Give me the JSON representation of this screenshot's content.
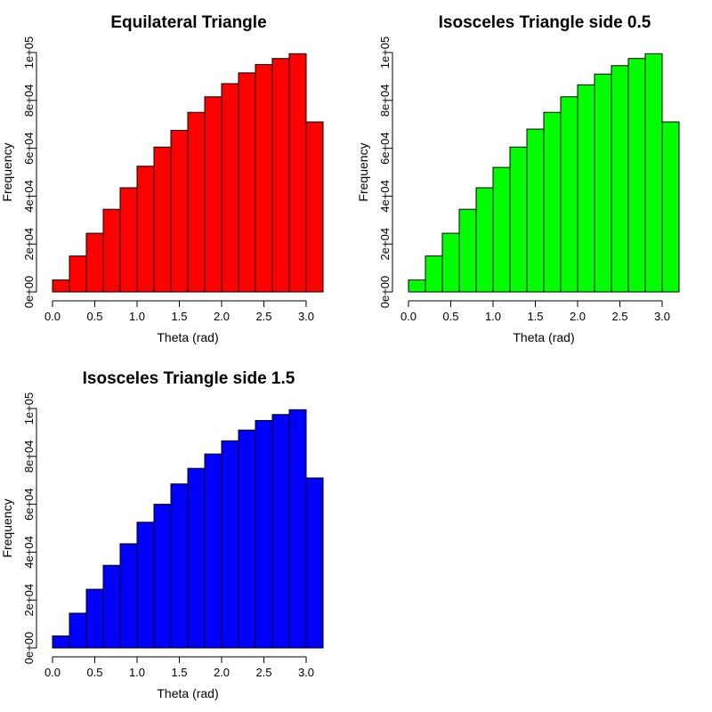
{
  "chart_data": [
    {
      "type": "bar",
      "title": "Equilateral Triangle",
      "xlabel": "Theta  (rad)",
      "ylabel": "Frequency",
      "bar_color": "#ff0000",
      "xlim": [
        0,
        3.2
      ],
      "ylim": [
        0,
        100000
      ],
      "xticks": [
        0,
        0.5,
        1,
        1.5,
        2,
        2.5,
        3
      ],
      "xtick_labels": [
        "0.0",
        "0.5",
        "1.0",
        "1.5",
        "2.0",
        "2.5",
        "3.0"
      ],
      "yticks": [
        0,
        20000,
        40000,
        60000,
        80000,
        100000
      ],
      "ytick_labels": [
        "0e+00",
        "2e+04",
        "4e+04",
        "6e+04",
        "8e+04",
        "1e+05"
      ],
      "bin_edges": [
        0,
        0.2,
        0.4,
        0.6,
        0.8,
        1.0,
        1.2,
        1.4,
        1.6,
        1.8,
        2.0,
        2.2,
        2.4,
        2.6,
        2.8,
        3.0,
        3.2
      ],
      "values": [
        5000,
        15000,
        24500,
        34500,
        43500,
        52500,
        60500,
        67500,
        75000,
        81500,
        87000,
        91500,
        95000,
        97500,
        99500,
        71000
      ],
      "grid": false
    },
    {
      "type": "bar",
      "title": "Isosceles Triangle side 0.5",
      "xlabel": "Theta  (rad)",
      "ylabel": "Frequency",
      "bar_color": "#00ff00",
      "xlim": [
        0,
        3.2
      ],
      "ylim": [
        0,
        100000
      ],
      "xticks": [
        0,
        0.5,
        1,
        1.5,
        2,
        2.5,
        3
      ],
      "xtick_labels": [
        "0.0",
        "0.5",
        "1.0",
        "1.5",
        "2.0",
        "2.5",
        "3.0"
      ],
      "yticks": [
        0,
        20000,
        40000,
        60000,
        80000,
        100000
      ],
      "ytick_labels": [
        "0e+00",
        "2e+04",
        "4e+04",
        "6e+04",
        "8e+04",
        "1e+05"
      ],
      "bin_edges": [
        0,
        0.2,
        0.4,
        0.6,
        0.8,
        1.0,
        1.2,
        1.4,
        1.6,
        1.8,
        2.0,
        2.2,
        2.4,
        2.6,
        2.8,
        3.0,
        3.2
      ],
      "values": [
        5000,
        15000,
        24500,
        34500,
        43500,
        52000,
        60500,
        68000,
        75000,
        81500,
        86500,
        91000,
        94500,
        97500,
        99500,
        71000
      ],
      "grid": false
    },
    {
      "type": "bar",
      "title": "Isosceles Triangle side 1.5",
      "xlabel": "Theta  (rad)",
      "ylabel": "Frequency",
      "bar_color": "#0000ff",
      "xlim": [
        0,
        3.2
      ],
      "ylim": [
        0,
        100000
      ],
      "xticks": [
        0,
        0.5,
        1,
        1.5,
        2,
        2.5,
        3
      ],
      "xtick_labels": [
        "0.0",
        "0.5",
        "1.0",
        "1.5",
        "2.0",
        "2.5",
        "3.0"
      ],
      "yticks": [
        0,
        20000,
        40000,
        60000,
        80000,
        100000
      ],
      "ytick_labels": [
        "0e+00",
        "2e+04",
        "4e+04",
        "6e+04",
        "8e+04",
        "1e+05"
      ],
      "bin_edges": [
        0,
        0.2,
        0.4,
        0.6,
        0.8,
        1.0,
        1.2,
        1.4,
        1.6,
        1.8,
        2.0,
        2.2,
        2.4,
        2.6,
        2.8,
        3.0,
        3.2
      ],
      "values": [
        5000,
        14500,
        24500,
        34500,
        43500,
        52500,
        60000,
        68500,
        75000,
        81000,
        86500,
        91000,
        95000,
        97500,
        99500,
        71000
      ],
      "grid": false
    }
  ]
}
